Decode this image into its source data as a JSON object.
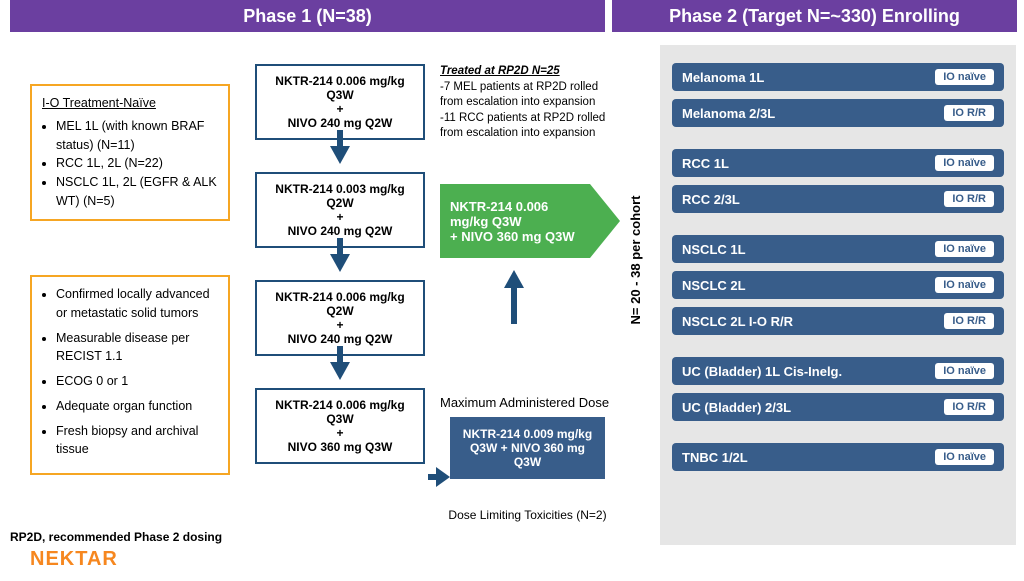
{
  "headers": {
    "phase1": "Phase 1 (N=38)",
    "phase2": "Phase 2 (Target N=~330) Enrolling"
  },
  "colors": {
    "header_bg": "#6b3fa0",
    "orange": "#f6a623",
    "navy": "#1f4e79",
    "cohort_bg": "#385d8a",
    "green": "#4caf50",
    "grey": "#e6e6e6",
    "nektar": "#f6871f"
  },
  "criteria_box1": {
    "title": "I-O Treatment-Naïve",
    "items": [
      "MEL 1L (with known BRAF status) (N=11)",
      "RCC 1L, 2L (N=22)",
      "NSCLC 1L, 2L (EGFR & ALK WT) (N=5)"
    ]
  },
  "criteria_box2": {
    "items": [
      "Confirmed locally advanced or metastatic solid tumors",
      "Measurable disease per RECIST 1.1",
      "ECOG 0 or 1",
      "Adequate organ function",
      "Fresh biopsy and archival tissue"
    ]
  },
  "doses": [
    "NKTR-214 0.006 mg/kg Q3W\n+\nNIVO 240 mg Q2W",
    "NKTR-214 0.003 mg/kg Q2W\n+\nNIVO 240 mg Q2W",
    "NKTR-214 0.006 mg/kg Q2W\n+\nNIVO 240 mg Q2W",
    "NKTR-214 0.006 mg/kg Q3W\n+\nNIVO 360 mg Q3W"
  ],
  "rp2d_note": {
    "title": "Treated at RP2D N=25",
    "lines": [
      "-7 MEL patients at RP2D rolled from escalation into expansion",
      "-11 RCC patients at RP2D rolled from escalation into expansion"
    ]
  },
  "rp2d_green": "NKTR-214 0.006 mg/kg Q3W\n+ NIVO 360 mg Q3W",
  "max_dose_label": "Maximum Administered Dose",
  "max_dose_box": "NKTR-214 0.009 mg/kg Q3W + NIVO 360 mg Q3W",
  "dlt": "Dose Limiting Toxicities (N=2)",
  "cohort_label": "N= 20 - 38 per cohort",
  "phase2_groups": [
    [
      {
        "name": "Melanoma 1L",
        "tag": "IO naïve"
      },
      {
        "name": "Melanoma 2/3L",
        "tag": "IO R/R"
      }
    ],
    [
      {
        "name": "RCC 1L",
        "tag": "IO naïve"
      },
      {
        "name": "RCC 2/3L",
        "tag": "IO R/R"
      }
    ],
    [
      {
        "name": "NSCLC 1L",
        "tag": "IO naïve"
      },
      {
        "name": "NSCLC 2L",
        "tag": "IO naïve"
      },
      {
        "name": "NSCLC 2L I-O R/R",
        "tag": "IO R/R"
      }
    ],
    [
      {
        "name": "UC (Bladder) 1L Cis-Inelg.",
        "tag": "IO naïve"
      },
      {
        "name": "UC (Bladder) 2/3L",
        "tag": "IO R/R"
      }
    ],
    [
      {
        "name": "TNBC 1/2L",
        "tag": "IO naïve"
      }
    ]
  ],
  "footer": "RP2D, recommended Phase 2 dosing",
  "logo": "NEKTAR"
}
